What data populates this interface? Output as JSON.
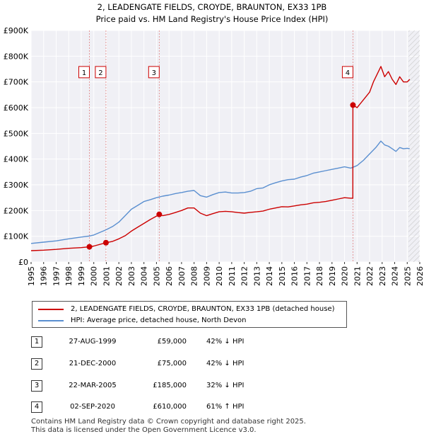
{
  "chart_data": {
    "type": "line",
    "title": "2, LEADENGATE FIELDS, CROYDE, BRAUNTON, EX33 1PB",
    "subtitle": "Price paid vs. HM Land Registry's House Price Index (HPI)",
    "xlim": [
      1995,
      2026
    ],
    "ylim": [
      0,
      900000
    ],
    "x_ticks": [
      "1995",
      "1996",
      "1997",
      "1998",
      "1999",
      "2000",
      "2001",
      "2002",
      "2003",
      "2004",
      "2005",
      "2006",
      "2007",
      "2008",
      "2009",
      "2010",
      "2011",
      "2012",
      "2013",
      "2014",
      "2015",
      "2016",
      "2017",
      "2018",
      "2019",
      "2020",
      "2021",
      "2022",
      "2023",
      "2024",
      "2025",
      "2026"
    ],
    "y_ticks": [
      {
        "value": 0,
        "label": "£0"
      },
      {
        "value": 100000,
        "label": "£100K"
      },
      {
        "value": 200000,
        "label": "£200K"
      },
      {
        "value": 300000,
        "label": "£300K"
      },
      {
        "value": 400000,
        "label": "£400K"
      },
      {
        "value": 500000,
        "label": "£500K"
      },
      {
        "value": 600000,
        "label": "£600K"
      },
      {
        "value": 700000,
        "label": "£700K"
      },
      {
        "value": 800000,
        "label": "£800K"
      },
      {
        "value": 900000,
        "label": "£900K"
      }
    ],
    "hatch_from": 2025.1,
    "series": [
      {
        "name": "2, LEADENGATE FIELDS, CROYDE, BRAUNTON, EX33 1PB (detached house)",
        "color": "#cc0000",
        "x": [
          1995.0,
          1996.0,
          1997.0,
          1998.0,
          1999.0,
          1999.65,
          2000.0,
          2000.97,
          2001.5,
          2002.0,
          2002.5,
          2003.0,
          2003.5,
          2004.0,
          2004.5,
          2005.0,
          2005.22,
          2005.5,
          2006.0,
          2006.5,
          2007.0,
          2007.5,
          2008.0,
          2008.5,
          2009.0,
          2009.5,
          2010.0,
          2010.5,
          2011.0,
          2011.5,
          2012.0,
          2012.5,
          2013.0,
          2013.5,
          2014.0,
          2014.5,
          2015.0,
          2015.5,
          2016.0,
          2016.5,
          2017.0,
          2017.5,
          2018.0,
          2018.5,
          2019.0,
          2019.5,
          2020.0,
          2020.5,
          2020.66,
          2020.67,
          2021.0,
          2021.5,
          2022.0,
          2022.3,
          2022.6,
          2022.9,
          2023.2,
          2023.5,
          2023.8,
          2024.1,
          2024.4,
          2024.7,
          2025.0,
          2025.2
        ],
        "values": [
          44000,
          46000,
          49000,
          53000,
          56000,
          59000,
          62000,
          75000,
          80000,
          90000,
          102000,
          120000,
          135000,
          150000,
          165000,
          178000,
          185000,
          180000,
          185000,
          192000,
          200000,
          210000,
          210000,
          190000,
          180000,
          188000,
          195000,
          197000,
          195000,
          192000,
          190000,
          193000,
          195000,
          198000,
          205000,
          210000,
          215000,
          214000,
          218000,
          222000,
          225000,
          230000,
          232000,
          235000,
          240000,
          245000,
          250000,
          248000,
          248000,
          610000,
          600000,
          630000,
          660000,
          700000,
          730000,
          760000,
          720000,
          740000,
          710000,
          690000,
          720000,
          700000,
          700000,
          710000
        ]
      },
      {
        "name": "HPI: Average price, detached house, North Devon",
        "color": "#5a8fd0",
        "x": [
          1995.0,
          1996.0,
          1997.0,
          1998.0,
          1999.0,
          1999.65,
          2000.0,
          2000.97,
          2001.5,
          2002.0,
          2002.5,
          2003.0,
          2003.5,
          2004.0,
          2004.5,
          2005.0,
          2005.5,
          2006.0,
          2006.5,
          2007.0,
          2007.5,
          2008.0,
          2008.5,
          2009.0,
          2009.5,
          2010.0,
          2010.5,
          2011.0,
          2011.5,
          2012.0,
          2012.5,
          2013.0,
          2013.5,
          2014.0,
          2014.5,
          2015.0,
          2015.5,
          2016.0,
          2016.5,
          2017.0,
          2017.5,
          2018.0,
          2018.5,
          2019.0,
          2019.5,
          2020.0,
          2020.5,
          2020.66,
          2021.0,
          2021.5,
          2022.0,
          2022.5,
          2022.9,
          2023.2,
          2023.5,
          2023.8,
          2024.1,
          2024.4,
          2024.7,
          2025.0,
          2025.2
        ],
        "values": [
          72000,
          77000,
          82000,
          90000,
          97000,
          101000,
          105000,
          125000,
          138000,
          155000,
          180000,
          205000,
          220000,
          235000,
          242000,
          250000,
          256000,
          260000,
          266000,
          270000,
          275000,
          278000,
          258000,
          252000,
          262000,
          270000,
          272000,
          268000,
          268000,
          270000,
          275000,
          285000,
          288000,
          300000,
          308000,
          315000,
          320000,
          322000,
          330000,
          336000,
          345000,
          350000,
          355000,
          360000,
          365000,
          370000,
          365000,
          368000,
          375000,
          395000,
          420000,
          445000,
          470000,
          455000,
          450000,
          440000,
          430000,
          445000,
          440000,
          442000,
          440000
        ]
      }
    ],
    "sales": [
      {
        "num": "1",
        "x": 1999.65,
        "value": 59000,
        "date": "27-AUG-1999",
        "price": "£59,000",
        "hpi": "42% ↓ HPI"
      },
      {
        "num": "2",
        "x": 2000.97,
        "value": 75000,
        "date": "21-DEC-2000",
        "price": "£75,000",
        "hpi": "42% ↓ HPI"
      },
      {
        "num": "3",
        "x": 2005.22,
        "value": 185000,
        "date": "22-MAR-2005",
        "price": "£185,000",
        "hpi": "32% ↓ HPI"
      },
      {
        "num": "4",
        "x": 2020.67,
        "value": 610000,
        "date": "02-SEP-2020",
        "price": "£610,000",
        "hpi": "61% ↑ HPI"
      }
    ]
  },
  "legend": {
    "property_label": "2, LEADENGATE FIELDS, CROYDE, BRAUNTON, EX33 1PB (detached house)",
    "hpi_label": "HPI: Average price, detached house, North Devon",
    "property_color": "#cc0000",
    "hpi_color": "#5a8fd0"
  },
  "footer": {
    "line1": "Contains HM Land Registry data © Crown copyright and database right 2025.",
    "line2": "This data is licensed under the Open Government Licence v3.0."
  }
}
